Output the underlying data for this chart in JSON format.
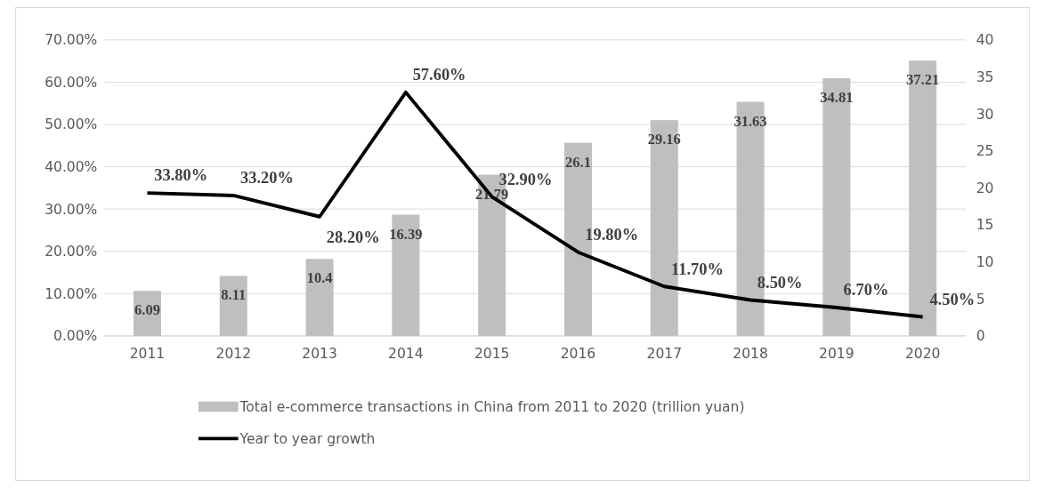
{
  "chart_data": {
    "type": "bar",
    "categories": [
      "2011",
      "2012",
      "2013",
      "2014",
      "2015",
      "2016",
      "2017",
      "2018",
      "2019",
      "2020"
    ],
    "series": [
      {
        "axis": "y2",
        "name": "Total e-commerce transactions in China from 2011 to 2020 (trillion yuan)",
        "color": "#bfbfbf",
        "values": [
          6.09,
          8.11,
          10.4,
          16.39,
          21.79,
          26.1,
          29.16,
          31.63,
          34.81,
          37.21
        ],
        "value_labels": [
          "6.09",
          "8.11",
          "10.4",
          "16.39",
          "21.79",
          "26.1",
          "29.16",
          "31.63",
          "34.81",
          "37.21"
        ]
      },
      {
        "type": "line",
        "name": "Year to year growth",
        "color": "#000000",
        "values": [
          33.8,
          33.2,
          28.2,
          57.6,
          32.9,
          19.8,
          11.7,
          8.5,
          6.7,
          4.5
        ],
        "value_labels": [
          "33.80%",
          "33.20%",
          "28.20%",
          "57.60%",
          "32.90%",
          "19.80%",
          "11.70%",
          "8.50%",
          "6.70%",
          "4.50%"
        ]
      }
    ],
    "ylim": [
      0,
      70
    ],
    "yticks": [
      {
        "value": 0,
        "label": "0.00%"
      },
      {
        "value": 10,
        "label": "10.00%"
      },
      {
        "value": 20,
        "label": "20.00%"
      },
      {
        "value": 30,
        "label": "30.00%"
      },
      {
        "value": 40,
        "label": "40.00%"
      },
      {
        "value": 50,
        "label": "50.00%"
      },
      {
        "value": 60,
        "label": "60.00%"
      },
      {
        "value": 70,
        "label": "70.00%"
      }
    ],
    "y2lim": [
      0,
      40
    ],
    "y2ticks": [
      0,
      5,
      10,
      15,
      20,
      25,
      30,
      35,
      40
    ],
    "grid": "y",
    "legend": "bottom"
  }
}
